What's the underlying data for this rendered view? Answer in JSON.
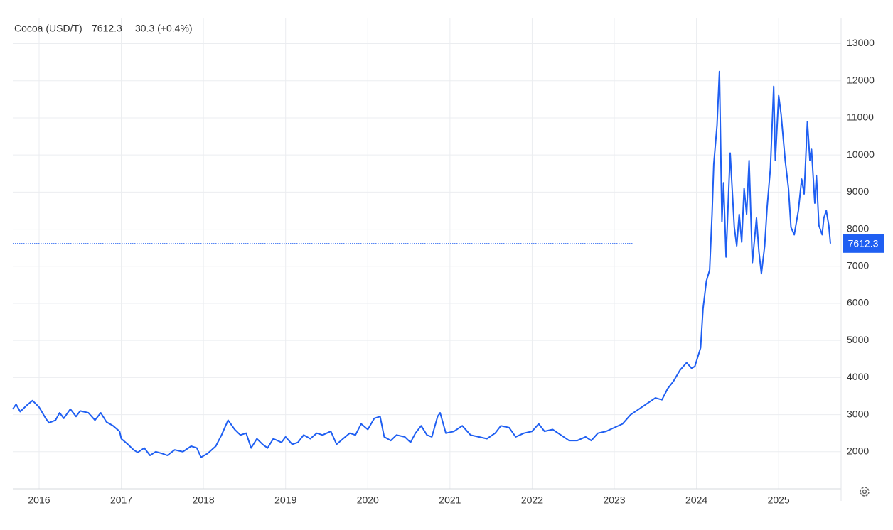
{
  "chart_data": {
    "type": "line",
    "title": "Cocoa (USD/T)",
    "last_value": 7612.3,
    "change": "30.3 (+0.4%)",
    "x": [
      2015.68,
      2015.72,
      2015.77,
      2015.85,
      2015.92,
      2016.0,
      2016.08,
      2016.12,
      2016.2,
      2016.25,
      2016.3,
      2016.38,
      2016.45,
      2016.5,
      2016.6,
      2016.68,
      2016.75,
      2016.82,
      2016.9,
      2016.98,
      2017.0,
      2017.08,
      2017.15,
      2017.2,
      2017.28,
      2017.35,
      2017.42,
      2017.5,
      2017.56,
      2017.65,
      2017.75,
      2017.85,
      2017.92,
      2017.97,
      2018.05,
      2018.15,
      2018.22,
      2018.3,
      2018.38,
      2018.45,
      2018.52,
      2018.58,
      2018.65,
      2018.72,
      2018.78,
      2018.85,
      2018.95,
      2019.0,
      2019.08,
      2019.15,
      2019.22,
      2019.3,
      2019.38,
      2019.45,
      2019.55,
      2019.62,
      2019.7,
      2019.78,
      2019.85,
      2019.92,
      2020.0,
      2020.08,
      2020.15,
      2020.2,
      2020.28,
      2020.35,
      2020.45,
      2020.52,
      2020.58,
      2020.65,
      2020.72,
      2020.78,
      2020.85,
      2020.88,
      2020.95,
      2021.05,
      2021.15,
      2021.25,
      2021.35,
      2021.45,
      2021.55,
      2021.62,
      2021.72,
      2021.8,
      2021.9,
      2022.0,
      2022.08,
      2022.15,
      2022.25,
      2022.35,
      2022.45,
      2022.55,
      2022.65,
      2022.72,
      2022.8,
      2022.9,
      2023.0,
      2023.1,
      2023.2,
      2023.3,
      2023.4,
      2023.5,
      2023.58,
      2023.65,
      2023.72,
      2023.8,
      2023.88,
      2023.94,
      2023.98,
      2024.05,
      2024.08,
      2024.12,
      2024.16,
      2024.19,
      2024.21,
      2024.25,
      2024.28,
      2024.31,
      2024.33,
      2024.36,
      2024.41,
      2024.46,
      2024.49,
      2024.52,
      2024.55,
      2024.58,
      2024.61,
      2024.64,
      2024.68,
      2024.73,
      2024.76,
      2024.79,
      2024.83,
      2024.86,
      2024.9,
      2024.94,
      2024.96,
      2025.0,
      2025.03,
      2025.08,
      2025.12,
      2025.15,
      2025.19,
      2025.24,
      2025.28,
      2025.31,
      2025.35,
      2025.38,
      2025.4,
      2025.44,
      2025.46,
      2025.49,
      2025.53,
      2025.55,
      2025.58,
      2025.61,
      2025.63
    ],
    "series": [
      {
        "name": "Cocoa",
        "color": "#1f5ff2",
        "values": [
          3150,
          3280,
          3080,
          3250,
          3380,
          3200,
          2900,
          2780,
          2850,
          3050,
          2900,
          3150,
          2950,
          3100,
          3050,
          2850,
          3050,
          2800,
          2700,
          2550,
          2350,
          2200,
          2050,
          1980,
          2100,
          1900,
          2000,
          1950,
          1900,
          2050,
          2000,
          2150,
          2100,
          1850,
          1950,
          2150,
          2450,
          2850,
          2600,
          2450,
          2500,
          2100,
          2350,
          2200,
          2100,
          2350,
          2250,
          2400,
          2200,
          2250,
          2450,
          2350,
          2500,
          2450,
          2550,
          2200,
          2350,
          2500,
          2450,
          2750,
          2600,
          2900,
          2950,
          2400,
          2300,
          2450,
          2400,
          2250,
          2500,
          2700,
          2450,
          2400,
          2950,
          3050,
          2500,
          2550,
          2700,
          2450,
          2400,
          2350,
          2500,
          2700,
          2650,
          2400,
          2500,
          2550,
          2750,
          2550,
          2600,
          2450,
          2300,
          2300,
          2400,
          2300,
          2500,
          2550,
          2650,
          2750,
          3000,
          3150,
          3300,
          3450,
          3400,
          3700,
          3900,
          4200,
          4400,
          4250,
          4300,
          4800,
          5850,
          6600,
          6900,
          8400,
          9750,
          10800,
          12250,
          8200,
          9250,
          7250,
          10050,
          8050,
          7550,
          8400,
          7650,
          9100,
          8400,
          9850,
          7100,
          8300,
          7400,
          6800,
          7550,
          8600,
          9650,
          11850,
          9850,
          11600,
          11100,
          9850,
          9100,
          8050,
          7850,
          8500,
          9350,
          8950,
          10900,
          9850,
          10150,
          8700,
          9450,
          8100,
          7850,
          8300,
          8500,
          8100,
          7612.3
        ]
      }
    ],
    "xlim": [
      2015.68,
      2025.76
    ],
    "xticks": [
      2016,
      2017,
      2018,
      2019,
      2020,
      2021,
      2022,
      2023,
      2024,
      2025
    ],
    "ylim": [
      1000,
      13700
    ],
    "yticks": [
      2000,
      3000,
      4000,
      5000,
      6000,
      7000,
      8000,
      9000,
      10000,
      11000,
      12000,
      13000
    ],
    "grid": true,
    "change_color": "#2bb52b"
  }
}
